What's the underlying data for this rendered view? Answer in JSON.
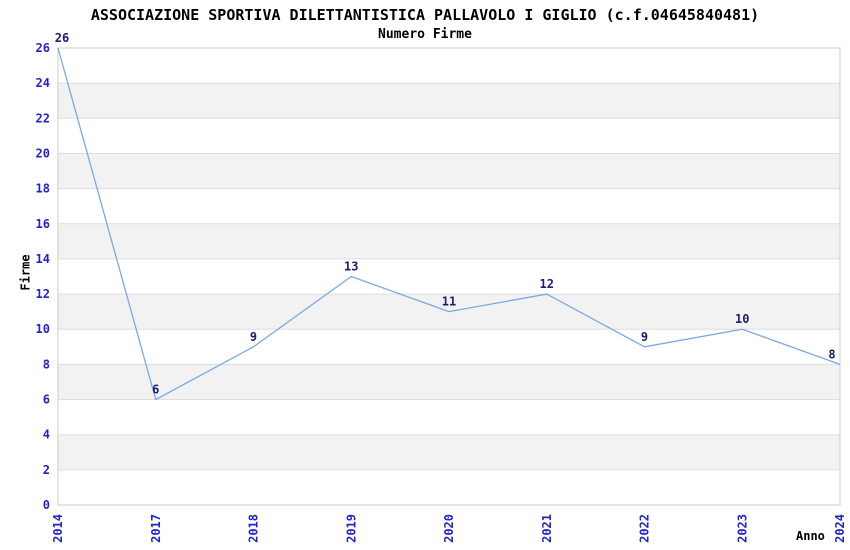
{
  "chart_data": {
    "type": "line",
    "title": "ASSOCIAZIONE SPORTIVA DILETTANTISTICA PALLAVOLO I GIGLIO (c.f.04645840481)",
    "subtitle": "Numero Firme",
    "xlabel": "Anno",
    "ylabel": "Firme",
    "categories": [
      "2014",
      "2017",
      "2018",
      "2019",
      "2020",
      "2021",
      "2022",
      "2023",
      "2024"
    ],
    "values": [
      26,
      6,
      9,
      13,
      11,
      12,
      9,
      10,
      8
    ],
    "point_labels": [
      "26",
      "6",
      "9",
      "13",
      "11",
      "12",
      "9",
      "10",
      "8"
    ],
    "ylim": [
      0,
      26
    ],
    "ytick_step": 2,
    "grid": "horizontal-only",
    "banded_background": true,
    "legend_position": "none",
    "colors": {
      "line": "#7aaae4",
      "tick_label": "#2323cc",
      "point_label": "#1c1c70",
      "band": "#f2f2f2",
      "grid_line": "#dedede",
      "border": "#cccccc",
      "text": "#000000",
      "background": "#ffffff"
    }
  }
}
